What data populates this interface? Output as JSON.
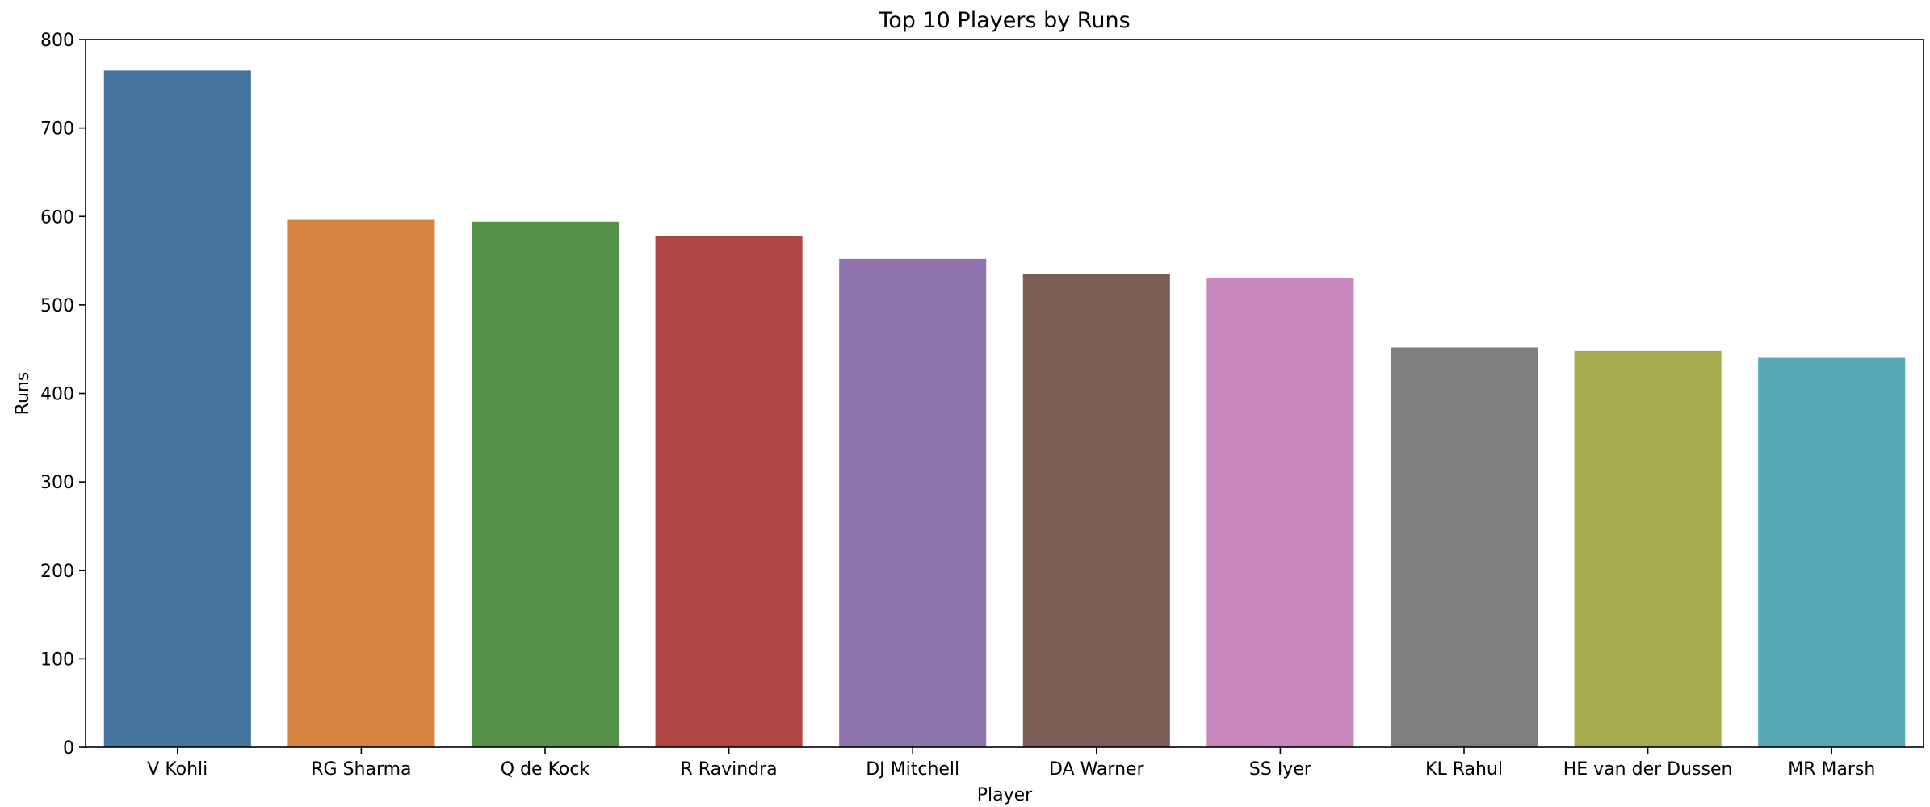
{
  "chart_data": {
    "type": "bar",
    "title": "Top 10 Players by Runs",
    "xlabel": "Player",
    "ylabel": "Runs",
    "ylim": [
      0,
      800
    ],
    "yticks": [
      0,
      100,
      200,
      300,
      400,
      500,
      600,
      700,
      800
    ],
    "grid": false,
    "legend": "none",
    "categories": [
      "V Kohli",
      "RG Sharma",
      "Q de Kock",
      "R Ravindra",
      "DJ Mitchell",
      "DA Warner",
      "SS Iyer",
      "KL Rahul",
      "HE van der Dussen",
      "MR Marsh"
    ],
    "values": [
      765,
      597,
      594,
      578,
      552,
      535,
      530,
      452,
      448,
      441
    ],
    "colors": [
      "#4473a0",
      "#d68540",
      "#549047",
      "#ae4644",
      "#8f74ad",
      "#7d5e55",
      "#c887bc",
      "#7f7f7f",
      "#a7a94e",
      "#56a8b7"
    ]
  }
}
